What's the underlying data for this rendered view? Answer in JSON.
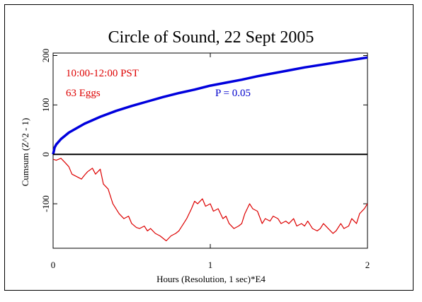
{
  "chart_data": {
    "type": "line",
    "title": "Circle of Sound, 22 Sept 2005",
    "xlabel": "Hours (Resolution, 1 sec)*E4",
    "ylabel": "Cumsum (Z^2 - 1)",
    "xlim": [
      0,
      2
    ],
    "ylim": [
      -190,
      205
    ],
    "x_ticks": [
      0,
      1,
      2
    ],
    "x_tick_labels": [
      "0",
      "1",
      "2"
    ],
    "y_ticks": [
      -100,
      0,
      100,
      200
    ],
    "y_tick_labels": [
      "-100",
      "0",
      "100",
      "200"
    ],
    "grid": false,
    "annotations": [
      {
        "text": "10:00-12:00 PST",
        "color": "#dd0000",
        "position": "upper-left"
      },
      {
        "text": "63 Eggs",
        "color": "#dd0000",
        "position": "upper-left"
      },
      {
        "text": "P = 0.05",
        "color": "#0000cc",
        "position": "upper-center"
      }
    ],
    "series": [
      {
        "role": "probability envelope",
        "color": "#0000dd",
        "x": [
          0,
          0.01,
          0.02,
          0.05,
          0.1,
          0.2,
          0.3,
          0.4,
          0.5,
          0.6,
          0.7,
          0.8,
          0.9,
          1.0,
          1.1,
          1.2,
          1.3,
          1.4,
          1.5,
          1.6,
          1.7,
          1.8,
          1.9,
          2.0
        ],
        "values": [
          0,
          14,
          20,
          31,
          44,
          62,
          76,
          88,
          98,
          107,
          116,
          124,
          131,
          139,
          145,
          151,
          158,
          164,
          170,
          176,
          181,
          186,
          191,
          196
        ]
      },
      {
        "role": "baseline",
        "color": "#000000",
        "x": [
          0,
          2
        ],
        "values": [
          0,
          0
        ]
      },
      {
        "role": "cumulative deviation",
        "color": "#dd0000",
        "x": [
          0,
          0.02,
          0.05,
          0.08,
          0.1,
          0.12,
          0.15,
          0.18,
          0.2,
          0.22,
          0.25,
          0.27,
          0.3,
          0.32,
          0.35,
          0.38,
          0.4,
          0.42,
          0.45,
          0.48,
          0.5,
          0.53,
          0.55,
          0.58,
          0.6,
          0.62,
          0.65,
          0.68,
          0.7,
          0.72,
          0.75,
          0.78,
          0.8,
          0.83,
          0.85,
          0.88,
          0.9,
          0.92,
          0.95,
          0.97,
          1.0,
          1.02,
          1.05,
          1.08,
          1.1,
          1.12,
          1.15,
          1.18,
          1.2,
          1.22,
          1.25,
          1.27,
          1.3,
          1.33,
          1.35,
          1.38,
          1.4,
          1.43,
          1.45,
          1.48,
          1.5,
          1.53,
          1.55,
          1.58,
          1.6,
          1.62,
          1.65,
          1.68,
          1.7,
          1.72,
          1.75,
          1.78,
          1.8,
          1.83,
          1.85,
          1.88,
          1.9,
          1.93,
          1.95,
          1.98,
          2.0
        ],
        "values": [
          -10,
          -12,
          -8,
          -18,
          -25,
          -40,
          -45,
          -50,
          -42,
          -35,
          -28,
          -40,
          -30,
          -60,
          -70,
          -100,
          -110,
          -120,
          -130,
          -125,
          -140,
          -148,
          -150,
          -145,
          -155,
          -150,
          -160,
          -165,
          -170,
          -175,
          -165,
          -160,
          -155,
          -140,
          -130,
          -110,
          -95,
          -100,
          -90,
          -105,
          -100,
          -115,
          -110,
          -130,
          -125,
          -140,
          -150,
          -145,
          -140,
          -120,
          -100,
          -110,
          -115,
          -140,
          -130,
          -135,
          -125,
          -130,
          -140,
          -135,
          -140,
          -130,
          -145,
          -140,
          -145,
          -135,
          -150,
          -155,
          -150,
          -140,
          -150,
          -160,
          -155,
          -140,
          -150,
          -145,
          -130,
          -140,
          -120,
          -110,
          -100
        ]
      }
    ]
  }
}
